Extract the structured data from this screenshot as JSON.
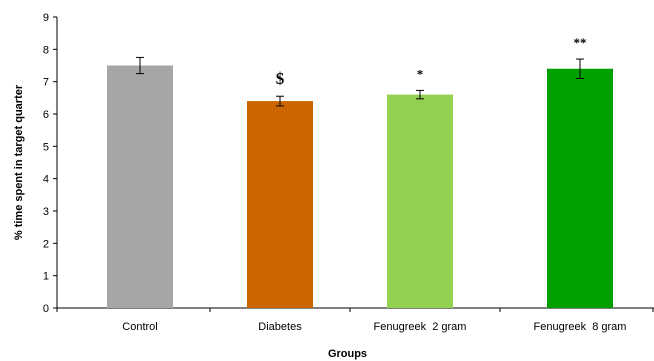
{
  "chart_data": {
    "type": "bar",
    "title": "",
    "xlabel": "Groups",
    "ylabel": "% time spent in target quarter",
    "ylim": [
      0,
      9
    ],
    "yticks": [
      "0",
      "1",
      "2",
      "3",
      "4",
      "5",
      "6",
      "7",
      "8",
      "9"
    ],
    "grid": false,
    "legend": "none",
    "categories": [
      "Control",
      "Diabetes",
      "Fenugreek  2 gram",
      "Fenugreek  8 gram"
    ],
    "values": [
      7.5,
      6.4,
      6.6,
      7.4
    ],
    "errors": [
      0.25,
      0.15,
      0.13,
      0.3
    ],
    "annotations": [
      "",
      "$",
      "*",
      "**"
    ],
    "colors": [
      "#a6a6a6",
      "#cc6600",
      "#92d050",
      "#00a000"
    ]
  }
}
